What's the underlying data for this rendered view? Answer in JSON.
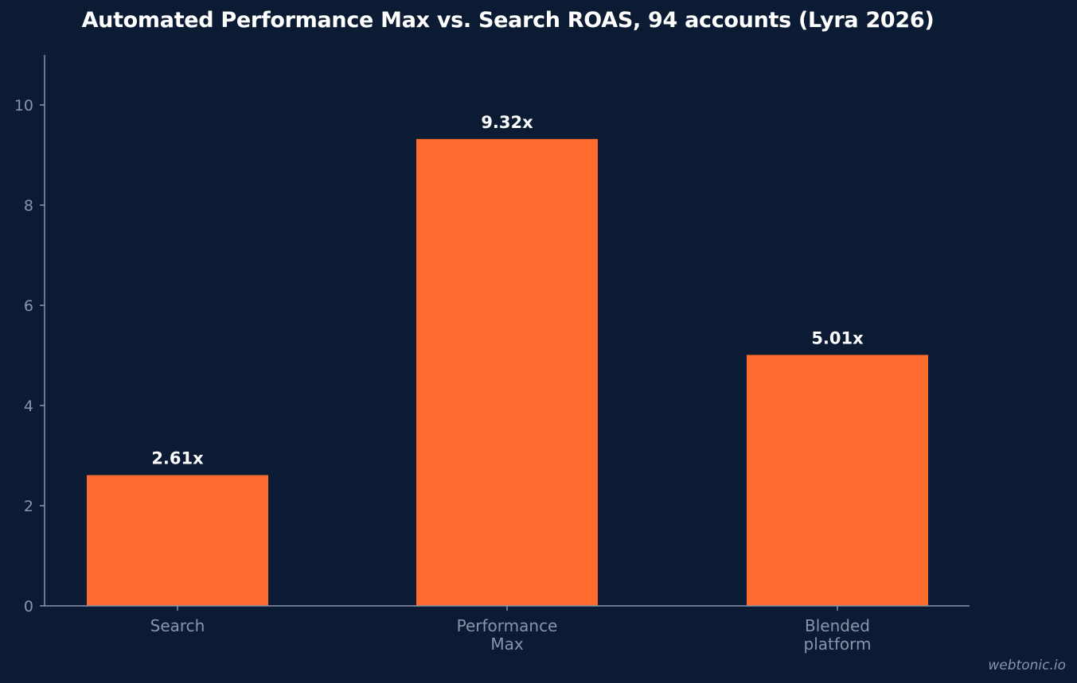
{
  "colors": {
    "background": "#0b1b33",
    "bar": "#ff6b2f",
    "axis": "#8796ad",
    "text": "#ffffff"
  },
  "watermark": "webtonic.io",
  "chart_data": {
    "type": "bar",
    "title": "Automated Performance Max vs. Search ROAS, 94 accounts (Lyra 2026)",
    "xlabel": "",
    "ylabel": "",
    "categories": [
      [
        "Search"
      ],
      [
        "Performance",
        "Max"
      ],
      [
        "Blended",
        "platform"
      ]
    ],
    "values": [
      2.61,
      9.32,
      5.01
    ],
    "data_labels": [
      "2.61x",
      "9.32x",
      "5.01x"
    ],
    "ylim": [
      0,
      11
    ],
    "yticks": [
      0,
      2,
      4,
      6,
      8,
      10
    ],
    "grid": false,
    "legend": "none"
  }
}
